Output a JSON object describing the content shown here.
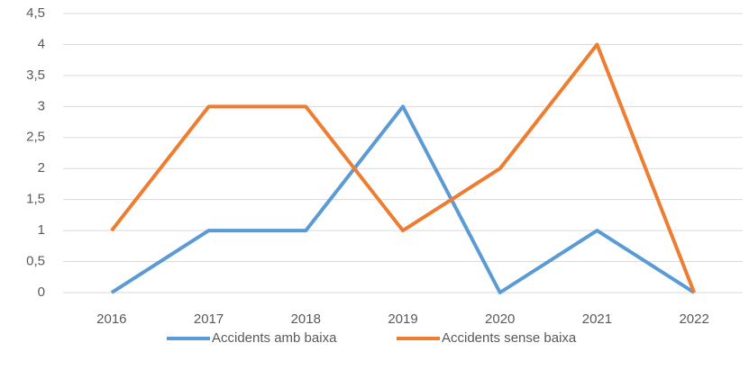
{
  "chart_data": {
    "type": "line",
    "categories": [
      "2016",
      "2017",
      "2018",
      "2019",
      "2020",
      "2021",
      "2022"
    ],
    "series": [
      {
        "name": "Accidents amb baixa",
        "color": "#5b9bd5",
        "values": [
          0,
          1,
          1,
          3,
          0,
          1,
          0
        ]
      },
      {
        "name": "Accidents sense baixa",
        "color": "#ed7d31",
        "values": [
          1,
          3,
          3,
          1,
          2,
          4,
          0
        ]
      }
    ],
    "ylim": [
      0,
      4.5
    ],
    "yticks": [
      0,
      {
        "value": 0.5,
        "label": "0,5"
      },
      1,
      {
        "value": 1.5,
        "label": "1,5"
      },
      2,
      {
        "value": 2.5,
        "label": "2,5"
      },
      3,
      {
        "value": 3.5,
        "label": "3,5"
      },
      4,
      {
        "value": 4.5,
        "label": "4,5"
      }
    ],
    "grid": true,
    "legend": "bottom"
  }
}
